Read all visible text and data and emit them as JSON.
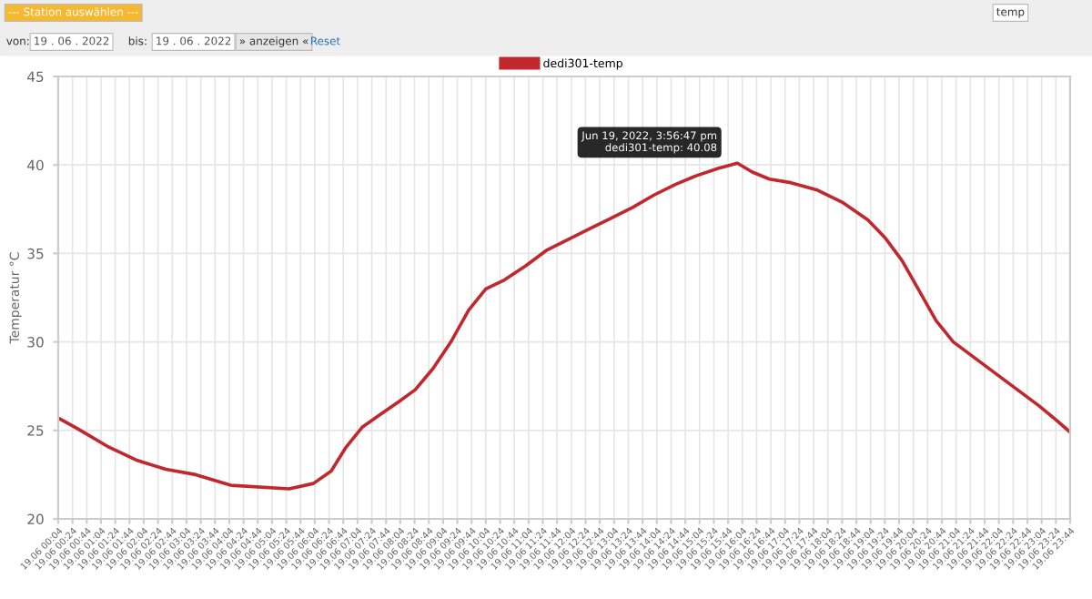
{
  "chart_data": {
    "type": "line",
    "ylabel": "Temperatur °C",
    "annotations": [
      "--- Station auswählen ---",
      "temp",
      "von:",
      "19 . 06 . 2022",
      "bis:",
      "19 . 06 . 2022",
      "» anzeigen «",
      "Reset",
      {
        "text": "Jun 19, 2022, 3:56:47 pm\ndedi301-temp: 40.08",
        "x": "2022-06-19T15:57",
        "y": 40.08
      }
    ],
    "x": [
      "2022-06-19T00:04",
      "2022-06-19T00:31",
      "2022-06-19T01:13",
      "2022-06-19T01:55",
      "2022-06-19T02:35",
      "2022-06-19T03:17",
      "2022-06-19T04:06",
      "2022-06-19T05:28",
      "2022-06-19T06:02",
      "2022-06-19T06:27",
      "2022-06-19T06:47",
      "2022-06-19T07:11",
      "2022-06-19T07:36",
      "2022-06-19T08:01",
      "2022-06-19T08:25",
      "2022-06-19T08:50",
      "2022-06-19T09:15",
      "2022-06-19T09:40",
      "2022-06-19T10:04",
      "2022-06-19T10:30",
      "2022-06-19T11:00",
      "2022-06-19T11:30",
      "2022-06-19T12:00",
      "2022-06-19T12:30",
      "2022-06-19T13:00",
      "2022-06-19T13:30",
      "2022-06-19T14:00",
      "2022-06-19T14:30",
      "2022-06-19T15:00",
      "2022-06-19T15:30",
      "2022-06-19T15:57",
      "2022-06-19T16:18",
      "2022-06-19T16:42",
      "2022-06-19T17:12",
      "2022-06-19T17:48",
      "2022-06-19T18:24",
      "2022-06-19T19:00",
      "2022-06-19T19:24",
      "2022-06-19T19:48",
      "2022-06-19T20:12",
      "2022-06-19T20:36",
      "2022-06-19T21:00",
      "2022-06-19T21:30",
      "2022-06-19T22:00",
      "2022-06-19T22:30",
      "2022-06-19T23:00",
      "2022-06-19T23:24",
      "2022-06-19T23:44"
    ],
    "series": [
      {
        "name": "dedi301-temp",
        "color": "#c0282d",
        "values": [
          25.7,
          25.1,
          24.1,
          23.3,
          22.8,
          22.5,
          21.9,
          21.7,
          22.0,
          22.7,
          24.0,
          25.2,
          25.9,
          26.6,
          27.3,
          28.5,
          30.0,
          31.8,
          33.0,
          33.5,
          34.3,
          35.2,
          35.8,
          36.4,
          37.0,
          37.6,
          38.3,
          38.9,
          39.4,
          39.8,
          40.1,
          39.6,
          39.2,
          39.0,
          38.6,
          37.9,
          36.9,
          35.9,
          34.6,
          32.9,
          31.2,
          30.0,
          29.1,
          28.2,
          27.3,
          26.4,
          25.6,
          24.9
        ]
      }
    ],
    "xlim": [
      "2022-06-19T00:04",
      "2022-06-19T23:44"
    ],
    "xticks": [
      {
        "value": "2022-06-19T00:04",
        "label": "19.06 00:04"
      },
      {
        "value": "2022-06-19T00:24",
        "label": "19.06 00:24"
      },
      {
        "value": "2022-06-19T00:44",
        "label": "19.06 00:44"
      },
      {
        "value": "2022-06-19T01:04",
        "label": "19.06 01:04"
      },
      {
        "value": "2022-06-19T01:24",
        "label": "19.06 01:24"
      },
      {
        "value": "2022-06-19T01:44",
        "label": "19.06 01:44"
      },
      {
        "value": "2022-06-19T02:04",
        "label": "19.06 02:04"
      },
      {
        "value": "2022-06-19T02:24",
        "label": "19.06 02:24"
      },
      {
        "value": "2022-06-19T02:44",
        "label": "19.06 02:44"
      },
      {
        "value": "2022-06-19T03:04",
        "label": "19.06 03:04"
      },
      {
        "value": "2022-06-19T03:24",
        "label": "19.06 03:24"
      },
      {
        "value": "2022-06-19T03:44",
        "label": "19.06 03:44"
      },
      {
        "value": "2022-06-19T04:04",
        "label": "19.06 04:04"
      },
      {
        "value": "2022-06-19T04:24",
        "label": "19.06 04:24"
      },
      {
        "value": "2022-06-19T04:44",
        "label": "19.06 04:44"
      },
      {
        "value": "2022-06-19T05:04",
        "label": "19.06 05:04"
      },
      {
        "value": "2022-06-19T05:24",
        "label": "19.06 05:24"
      },
      {
        "value": "2022-06-19T05:44",
        "label": "19.06 05:44"
      },
      {
        "value": "2022-06-19T06:04",
        "label": "19.06 06:04"
      },
      {
        "value": "2022-06-19T06:24",
        "label": "19.06 06:24"
      },
      {
        "value": "2022-06-19T06:44",
        "label": "19.06 06:44"
      },
      {
        "value": "2022-06-19T07:04",
        "label": "19.06 07:04"
      },
      {
        "value": "2022-06-19T07:24",
        "label": "19.06 07:24"
      },
      {
        "value": "2022-06-19T07:44",
        "label": "19.06 07:44"
      },
      {
        "value": "2022-06-19T08:04",
        "label": "19.06 08:04"
      },
      {
        "value": "2022-06-19T08:24",
        "label": "19.06 08:24"
      },
      {
        "value": "2022-06-19T08:44",
        "label": "19.06 08:44"
      },
      {
        "value": "2022-06-19T09:04",
        "label": "19.06 09:04"
      },
      {
        "value": "2022-06-19T09:24",
        "label": "19.06 09:24"
      },
      {
        "value": "2022-06-19T09:44",
        "label": "19.06 09:44"
      },
      {
        "value": "2022-06-19T10:04",
        "label": "19.06 10:04"
      },
      {
        "value": "2022-06-19T10:24",
        "label": "19.06 10:24"
      },
      {
        "value": "2022-06-19T10:44",
        "label": "19.06 10:44"
      },
      {
        "value": "2022-06-19T11:04",
        "label": "19.06 11:04"
      },
      {
        "value": "2022-06-19T11:24",
        "label": "19.06 11:24"
      },
      {
        "value": "2022-06-19T11:44",
        "label": "19.06 11:44"
      },
      {
        "value": "2022-06-19T12:04",
        "label": "19.06 12:04"
      },
      {
        "value": "2022-06-19T12:24",
        "label": "19.06 12:24"
      },
      {
        "value": "2022-06-19T12:44",
        "label": "19.06 12:44"
      },
      {
        "value": "2022-06-19T13:04",
        "label": "19.06 13:04"
      },
      {
        "value": "2022-06-19T13:24",
        "label": "19.06 13:24"
      },
      {
        "value": "2022-06-19T13:44",
        "label": "19.06 13:44"
      },
      {
        "value": "2022-06-19T14:04",
        "label": "19.06 14:04"
      },
      {
        "value": "2022-06-19T14:24",
        "label": "19.06 14:24"
      },
      {
        "value": "2022-06-19T14:44",
        "label": "19.06 14:44"
      },
      {
        "value": "2022-06-19T15:04",
        "label": "19.06 15:04"
      },
      {
        "value": "2022-06-19T15:24",
        "label": "19.06 15:24"
      },
      {
        "value": "2022-06-19T15:44",
        "label": "19.06 15:44"
      },
      {
        "value": "2022-06-19T16:04",
        "label": "19.06 16:04"
      },
      {
        "value": "2022-06-19T16:24",
        "label": "19.06 16:24"
      },
      {
        "value": "2022-06-19T16:44",
        "label": "19.06 16:44"
      },
      {
        "value": "2022-06-19T17:04",
        "label": "19.06 17:04"
      },
      {
        "value": "2022-06-19T17:24",
        "label": "19.06 17:24"
      },
      {
        "value": "2022-06-19T17:44",
        "label": "19.06 17:44"
      },
      {
        "value": "2022-06-19T18:04",
        "label": "19.06 18:04"
      },
      {
        "value": "2022-06-19T18:24",
        "label": "19.06 18:24"
      },
      {
        "value": "2022-06-19T18:44",
        "label": "19.06 18:44"
      },
      {
        "value": "2022-06-19T19:04",
        "label": "19.06 19:04"
      },
      {
        "value": "2022-06-19T19:24",
        "label": "19.06 19:24"
      },
      {
        "value": "2022-06-19T19:44",
        "label": "19.06 19:44"
      },
      {
        "value": "2022-06-19T20:04",
        "label": "19.06 20:04"
      },
      {
        "value": "2022-06-19T20:24",
        "label": "19.06 20:24"
      },
      {
        "value": "2022-06-19T20:44",
        "label": "19.06 20:44"
      },
      {
        "value": "2022-06-19T21:04",
        "label": "19.06 21:04"
      },
      {
        "value": "2022-06-19T21:24",
        "label": "19.06 21:24"
      },
      {
        "value": "2022-06-19T21:44",
        "label": "19.06 21:44"
      },
      {
        "value": "2022-06-19T22:04",
        "label": "19.06 22:04"
      },
      {
        "value": "2022-06-19T22:24",
        "label": "19.06 22:24"
      },
      {
        "value": "2022-06-19T22:44",
        "label": "19.06 22:44"
      },
      {
        "value": "2022-06-19T23:04",
        "label": "19.06 23:04"
      },
      {
        "value": "2022-06-19T23:24",
        "label": "19.06 23:24"
      },
      {
        "value": "2022-06-19T23:44",
        "label": "19.06 23:44"
      }
    ],
    "ylim": [
      20,
      45
    ],
    "yticks": [
      20,
      25,
      30,
      35,
      40,
      45
    ],
    "grid": true,
    "legend": "top",
    "marker": "none",
    "line_style": "solid"
  }
}
